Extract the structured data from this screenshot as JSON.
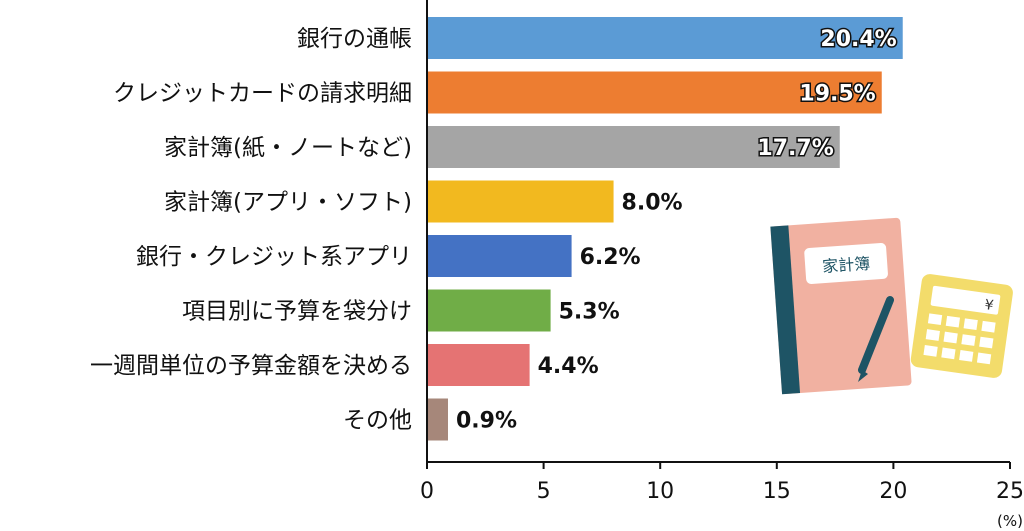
{
  "chart_data": {
    "type": "bar",
    "orientation": "horizontal",
    "categories": [
      "銀行の通帳",
      "クレジットカードの請求明細",
      "家計簿(紙・ノートなど)",
      "家計簿(アプリ・ソフト)",
      "銀行・クレジット系アプリ",
      "項目別に予算を袋分け",
      "一週間単位の予算金額を決める",
      "その他"
    ],
    "values": [
      20.4,
      19.5,
      17.7,
      8.0,
      6.2,
      5.3,
      4.4,
      0.9
    ],
    "value_labels": [
      "20.4%",
      "19.5%",
      "17.7%",
      "8.0%",
      "6.2%",
      "5.3%",
      "4.4%",
      "0.9%"
    ],
    "colors": [
      "#5b9bd5",
      "#ed7d31",
      "#a5a5a5",
      "#f2b91f",
      "#4472c4",
      "#70ad47",
      "#e57373",
      "#a6877a"
    ],
    "xlim": [
      0,
      25
    ],
    "x_ticks": [
      "0",
      "5",
      "10",
      "15",
      "20",
      "25"
    ],
    "unit": "(%)",
    "grid": false
  },
  "illustration": {
    "notebook_label": "家計簿",
    "calculator_symbol": "¥",
    "icons": [
      "notebook-icon",
      "pen-icon",
      "calculator-icon"
    ]
  }
}
